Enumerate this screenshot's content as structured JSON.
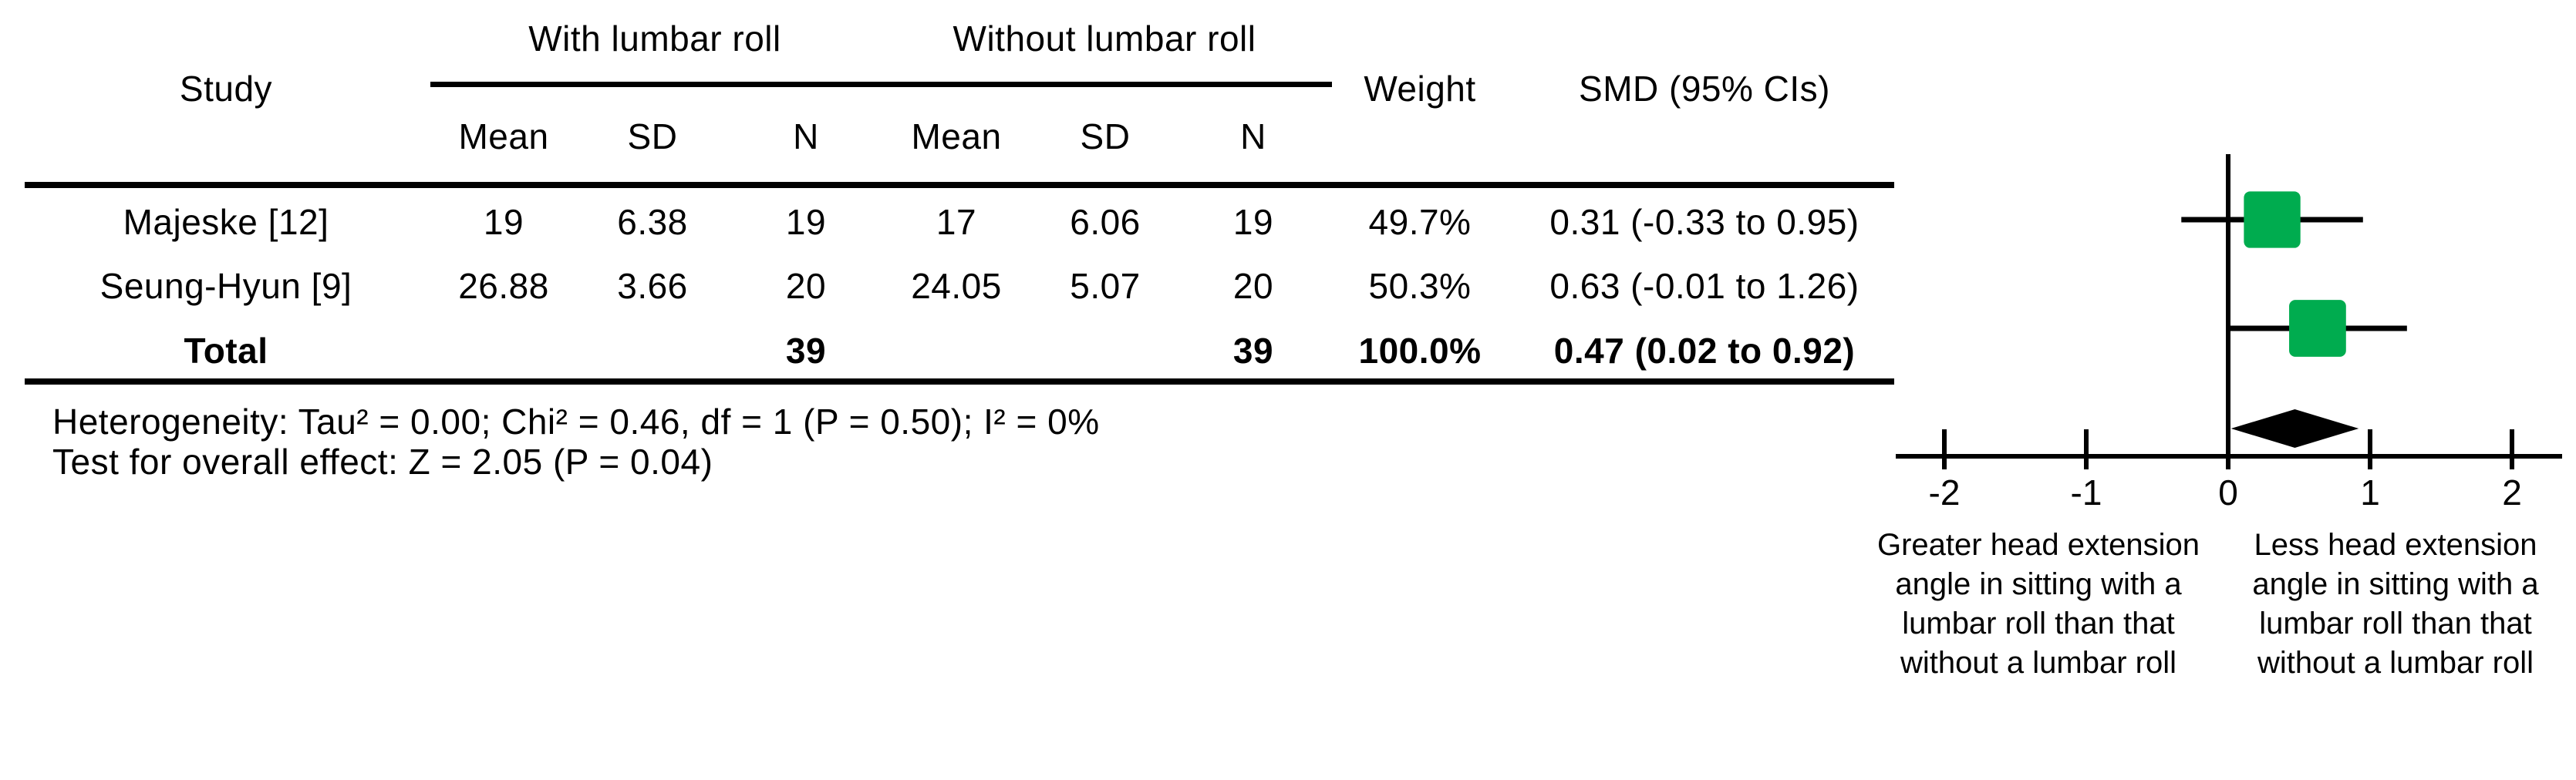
{
  "colors": {
    "marker_green": "#00AC4F",
    "ink": "#000000"
  },
  "table": {
    "headers": {
      "study": "Study",
      "group_with": "With lumbar roll",
      "group_without": "Without lumbar roll",
      "mean": "Mean",
      "sd": "SD",
      "n": "N",
      "weight": "Weight",
      "smd": "SMD (95% CIs)"
    },
    "rows": [
      {
        "study": "Majeske [12]",
        "mean1": "19",
        "sd1": "6.38",
        "n1": "19",
        "mean2": "17",
        "sd2": "6.06",
        "n2": "19",
        "weight": "49.7%",
        "smd": "0.31 (-0.33 to 0.95)"
      },
      {
        "study": "Seung-Hyun [9]",
        "mean1": "26.88",
        "sd1": "3.66",
        "n1": "20",
        "mean2": "24.05",
        "sd2": "5.07",
        "n2": "20",
        "weight": "50.3%",
        "smd": "0.63 (-0.01 to 1.26)"
      }
    ],
    "total": {
      "study": "Total",
      "n1": "39",
      "n2": "39",
      "weight": "100.0%",
      "smd": "0.47 (0.02 to 0.92)"
    }
  },
  "footnotes": {
    "heterogeneity": "Heterogeneity: Tau² = 0.00; Chi² = 0.46, df = 1 (P = 0.50); I² = 0%",
    "overall_effect": "Test for overall effect: Z = 2.05 (P = 0.04)"
  },
  "chart_data": {
    "type": "forest",
    "x_axis": {
      "ticks": [
        -2,
        -1,
        0,
        1,
        2
      ],
      "range": [
        -2.35,
        2.35
      ],
      "zero_line": 0
    },
    "studies": [
      {
        "name": "Majeske [12]",
        "smd": 0.31,
        "ci_low": -0.33,
        "ci_high": 0.95,
        "weight_pct": 49.7
      },
      {
        "name": "Seung-Hyun [9]",
        "smd": 0.63,
        "ci_low": -0.01,
        "ci_high": 1.26,
        "weight_pct": 50.3
      }
    ],
    "total": {
      "smd": 0.47,
      "ci_low": 0.02,
      "ci_high": 0.92,
      "weight_pct": 100.0
    },
    "axis_label_left": "Greater head extension angle in sitting with a lumbar roll than that without a lumbar roll",
    "axis_label_right": "Less head extension angle in sitting with a lumbar roll than that without a lumbar roll",
    "legend_position": "none",
    "grid": false
  }
}
